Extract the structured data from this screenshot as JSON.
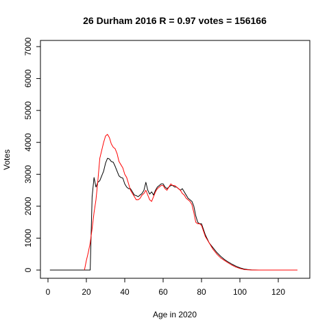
{
  "chart_data": {
    "type": "line",
    "title": "26 Durham 2016 R = 0.97 votes = 156166",
    "xlabel": "Age in 2020",
    "ylabel": "Votes",
    "xlim": [
      0,
      130
    ],
    "ylim": [
      0,
      7000
    ],
    "xticks": [
      0,
      20,
      40,
      60,
      80,
      100,
      120
    ],
    "yticks": [
      0,
      1000,
      2000,
      3000,
      4000,
      5000,
      6000,
      7000
    ],
    "grid": false,
    "series": [
      {
        "color": "#000000",
        "x": [
          1,
          2,
          10,
          15,
          20,
          21,
          22,
          23,
          24,
          25,
          26,
          27,
          28,
          29,
          30,
          31,
          32,
          33,
          34,
          35,
          36,
          37,
          38,
          39,
          40,
          41,
          42,
          43,
          44,
          45,
          46,
          47,
          48,
          49,
          50,
          51,
          52,
          53,
          54,
          55,
          56,
          57,
          58,
          59,
          60,
          61,
          62,
          63,
          64,
          65,
          66,
          67,
          68,
          69,
          70,
          71,
          72,
          73,
          74,
          75,
          76,
          77,
          78,
          79,
          80,
          82,
          84,
          86,
          88,
          90,
          92,
          94,
          96,
          98,
          100,
          102,
          104,
          106,
          108,
          110,
          115,
          120,
          125,
          130
        ],
        "y": [
          0,
          0,
          0,
          0,
          0,
          0,
          0,
          2300,
          2900,
          2600,
          2750,
          2800,
          2950,
          3100,
          3350,
          3500,
          3480,
          3400,
          3380,
          3250,
          3100,
          2950,
          2900,
          2880,
          2700,
          2600,
          2550,
          2550,
          2450,
          2350,
          2330,
          2300,
          2350,
          2400,
          2500,
          2750,
          2500,
          2380,
          2450,
          2350,
          2500,
          2600,
          2650,
          2700,
          2700,
          2600,
          2550,
          2600,
          2650,
          2650,
          2600,
          2600,
          2550,
          2500,
          2550,
          2450,
          2350,
          2250,
          2200,
          2150,
          2000,
          1700,
          1500,
          1450,
          1450,
          1100,
          850,
          700,
          550,
          430,
          330,
          250,
          180,
          120,
          70,
          35,
          15,
          5,
          2,
          0,
          0,
          0,
          0,
          0
        ]
      },
      {
        "color": "#ff0000",
        "x": [
          19,
          20,
          21,
          22,
          23,
          24,
          25,
          26,
          27,
          28,
          29,
          30,
          31,
          32,
          33,
          34,
          35,
          36,
          37,
          38,
          39,
          40,
          41,
          42,
          43,
          44,
          45,
          46,
          47,
          48,
          49,
          50,
          51,
          52,
          53,
          54,
          55,
          56,
          57,
          58,
          59,
          60,
          61,
          62,
          63,
          64,
          65,
          66,
          67,
          68,
          69,
          70,
          71,
          72,
          73,
          74,
          75,
          76,
          77,
          78,
          79,
          80,
          82,
          84,
          86,
          88,
          90,
          92,
          94,
          96,
          98,
          100,
          102,
          104,
          106,
          108,
          110,
          115,
          120,
          125,
          130
        ],
        "y": [
          0,
          300,
          550,
          850,
          1300,
          1800,
          2200,
          2800,
          3500,
          3750,
          4000,
          4200,
          4250,
          4150,
          3950,
          3850,
          3800,
          3650,
          3400,
          3300,
          3200,
          3000,
          2900,
          2700,
          2500,
          2400,
          2300,
          2200,
          2200,
          2250,
          2350,
          2400,
          2500,
          2350,
          2200,
          2150,
          2300,
          2450,
          2550,
          2600,
          2650,
          2650,
          2550,
          2500,
          2600,
          2700,
          2650,
          2650,
          2600,
          2550,
          2500,
          2400,
          2350,
          2250,
          2200,
          2150,
          2050,
          1800,
          1500,
          1450,
          1450,
          1400,
          1050,
          850,
          650,
          500,
          380,
          300,
          220,
          150,
          90,
          50,
          20,
          8,
          3,
          0,
          0,
          0,
          0,
          0,
          0
        ]
      }
    ]
  }
}
